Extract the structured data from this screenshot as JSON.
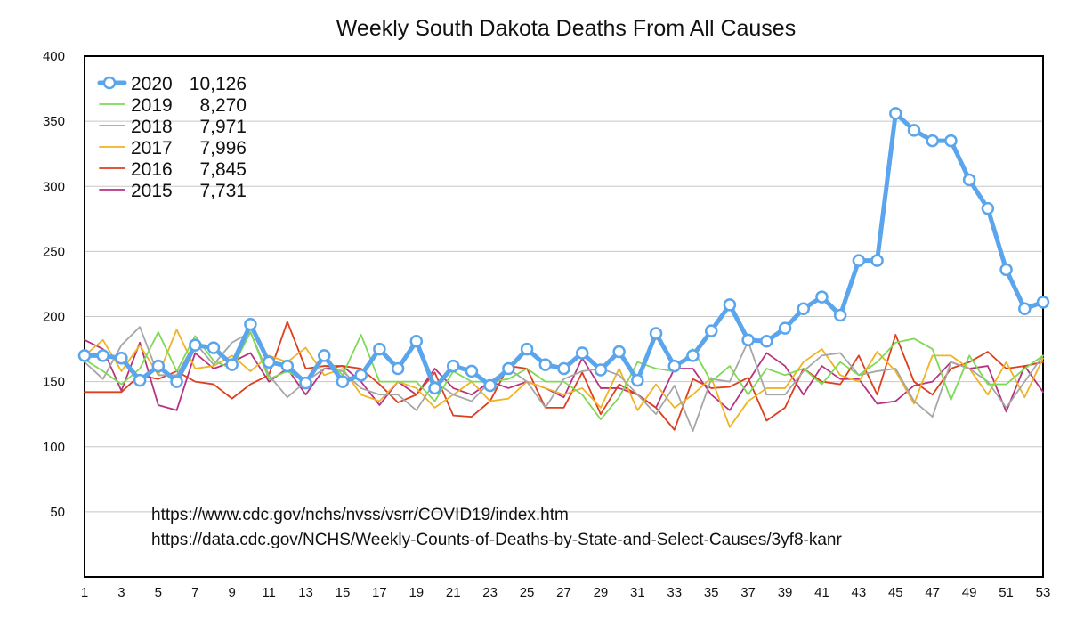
{
  "chart_data": {
    "type": "line",
    "title": "Weekly South Dakota Deaths From All Causes",
    "xlabel": "",
    "ylabel": "",
    "xlim": [
      1,
      53
    ],
    "ylim": [
      0,
      400
    ],
    "x_ticks": [
      1,
      3,
      5,
      7,
      9,
      11,
      13,
      15,
      17,
      19,
      21,
      23,
      25,
      27,
      29,
      31,
      33,
      35,
      37,
      39,
      41,
      43,
      45,
      47,
      49,
      51,
      53
    ],
    "y_ticks": [
      50,
      100,
      150,
      200,
      250,
      300,
      350,
      400
    ],
    "grid": "horizontal",
    "legend_position": "top-left",
    "x": [
      1,
      2,
      3,
      4,
      5,
      6,
      7,
      8,
      9,
      10,
      11,
      12,
      13,
      14,
      15,
      16,
      17,
      18,
      19,
      20,
      21,
      22,
      23,
      24,
      25,
      26,
      27,
      28,
      29,
      30,
      31,
      32,
      33,
      34,
      35,
      36,
      37,
      38,
      39,
      40,
      41,
      42,
      43,
      44,
      45,
      46,
      47,
      48,
      49,
      50,
      51,
      52,
      53
    ],
    "series": [
      {
        "name": "2020",
        "total": "10,126",
        "color": "#5aa5ec",
        "markers": true,
        "values": [
          170,
          170,
          168,
          151,
          162,
          150,
          178,
          176,
          163,
          194,
          165,
          162,
          149,
          170,
          150,
          155,
          175,
          160,
          181,
          145,
          162,
          158,
          147,
          160,
          175,
          163,
          160,
          172,
          159,
          173,
          151,
          187,
          162,
          170,
          189,
          209,
          182,
          181,
          191,
          206,
          215,
          201,
          243,
          243,
          356,
          343,
          335,
          335,
          305,
          283,
          236,
          206,
          211
        ]
      },
      {
        "name": "2019",
        "total": "8,270",
        "color": "#7ed957",
        "markers": false,
        "values": [
          167,
          158,
          148,
          160,
          188,
          158,
          185,
          166,
          160,
          188,
          152,
          158,
          150,
          170,
          155,
          186,
          150,
          150,
          150,
          135,
          158,
          150,
          150,
          152,
          160,
          150,
          150,
          140,
          121,
          138,
          165,
          160,
          158,
          175,
          150,
          162,
          140,
          160,
          155,
          160,
          148,
          165,
          155,
          165,
          180,
          183,
          175,
          136,
          170,
          148,
          148,
          160,
          170
        ]
      },
      {
        "name": "2018",
        "total": "7,971",
        "color": "#a6a6a6",
        "markers": false,
        "values": [
          165,
          152,
          178,
          192,
          155,
          155,
          180,
          163,
          180,
          188,
          155,
          138,
          150,
          160,
          158,
          145,
          140,
          140,
          128,
          150,
          140,
          135,
          150,
          160,
          150,
          130,
          152,
          158,
          160,
          155,
          140,
          125,
          147,
          112,
          152,
          150,
          181,
          140,
          140,
          158,
          170,
          172,
          155,
          158,
          160,
          135,
          123,
          165,
          160,
          150,
          130,
          150,
          170
        ]
      },
      {
        "name": "2017",
        "total": "7,996",
        "color": "#f0b323",
        "markers": false,
        "values": [
          170,
          182,
          158,
          178,
          155,
          190,
          160,
          162,
          170,
          158,
          170,
          165,
          176,
          155,
          160,
          140,
          135,
          150,
          145,
          130,
          140,
          150,
          135,
          137,
          150,
          145,
          140,
          145,
          130,
          160,
          128,
          148,
          130,
          140,
          153,
          115,
          135,
          145,
          145,
          165,
          175,
          155,
          150,
          173,
          158,
          133,
          170,
          170,
          160,
          140,
          165,
          138,
          168
        ]
      },
      {
        "name": "2016",
        "total": "7,845",
        "color": "#dc3f1e",
        "markers": false,
        "values": [
          142,
          142,
          142,
          155,
          152,
          158,
          150,
          148,
          137,
          148,
          155,
          196,
          160,
          162,
          162,
          160,
          148,
          134,
          140,
          157,
          124,
          123,
          135,
          162,
          160,
          130,
          130,
          157,
          125,
          148,
          140,
          130,
          113,
          152,
          145,
          146,
          153,
          120,
          130,
          160,
          150,
          148,
          170,
          140,
          186,
          150,
          140,
          160,
          165,
          173,
          160,
          162,
          165
        ]
      },
      {
        "name": "2015",
        "total": "7,731",
        "color": "#b83280",
        "markers": false,
        "values": [
          182,
          175,
          143,
          180,
          132,
          128,
          172,
          160,
          165,
          172,
          150,
          160,
          140,
          160,
          162,
          150,
          132,
          150,
          140,
          160,
          145,
          140,
          150,
          145,
          150,
          145,
          138,
          168,
          145,
          145,
          140,
          130,
          160,
          160,
          140,
          128,
          150,
          172,
          162,
          140,
          162,
          152,
          152,
          133,
          135,
          147,
          150,
          165,
          160,
          162,
          127,
          162,
          142
        ]
      }
    ],
    "annotations": [
      "https://www.cdc.gov/nchs/nvss/vsrr/COVID19/index.htm",
      "https://data.cdc.gov/NCHS/Weekly-Counts-of-Deaths-by-State-and-Select-Causes/3yf8-kanr"
    ]
  }
}
